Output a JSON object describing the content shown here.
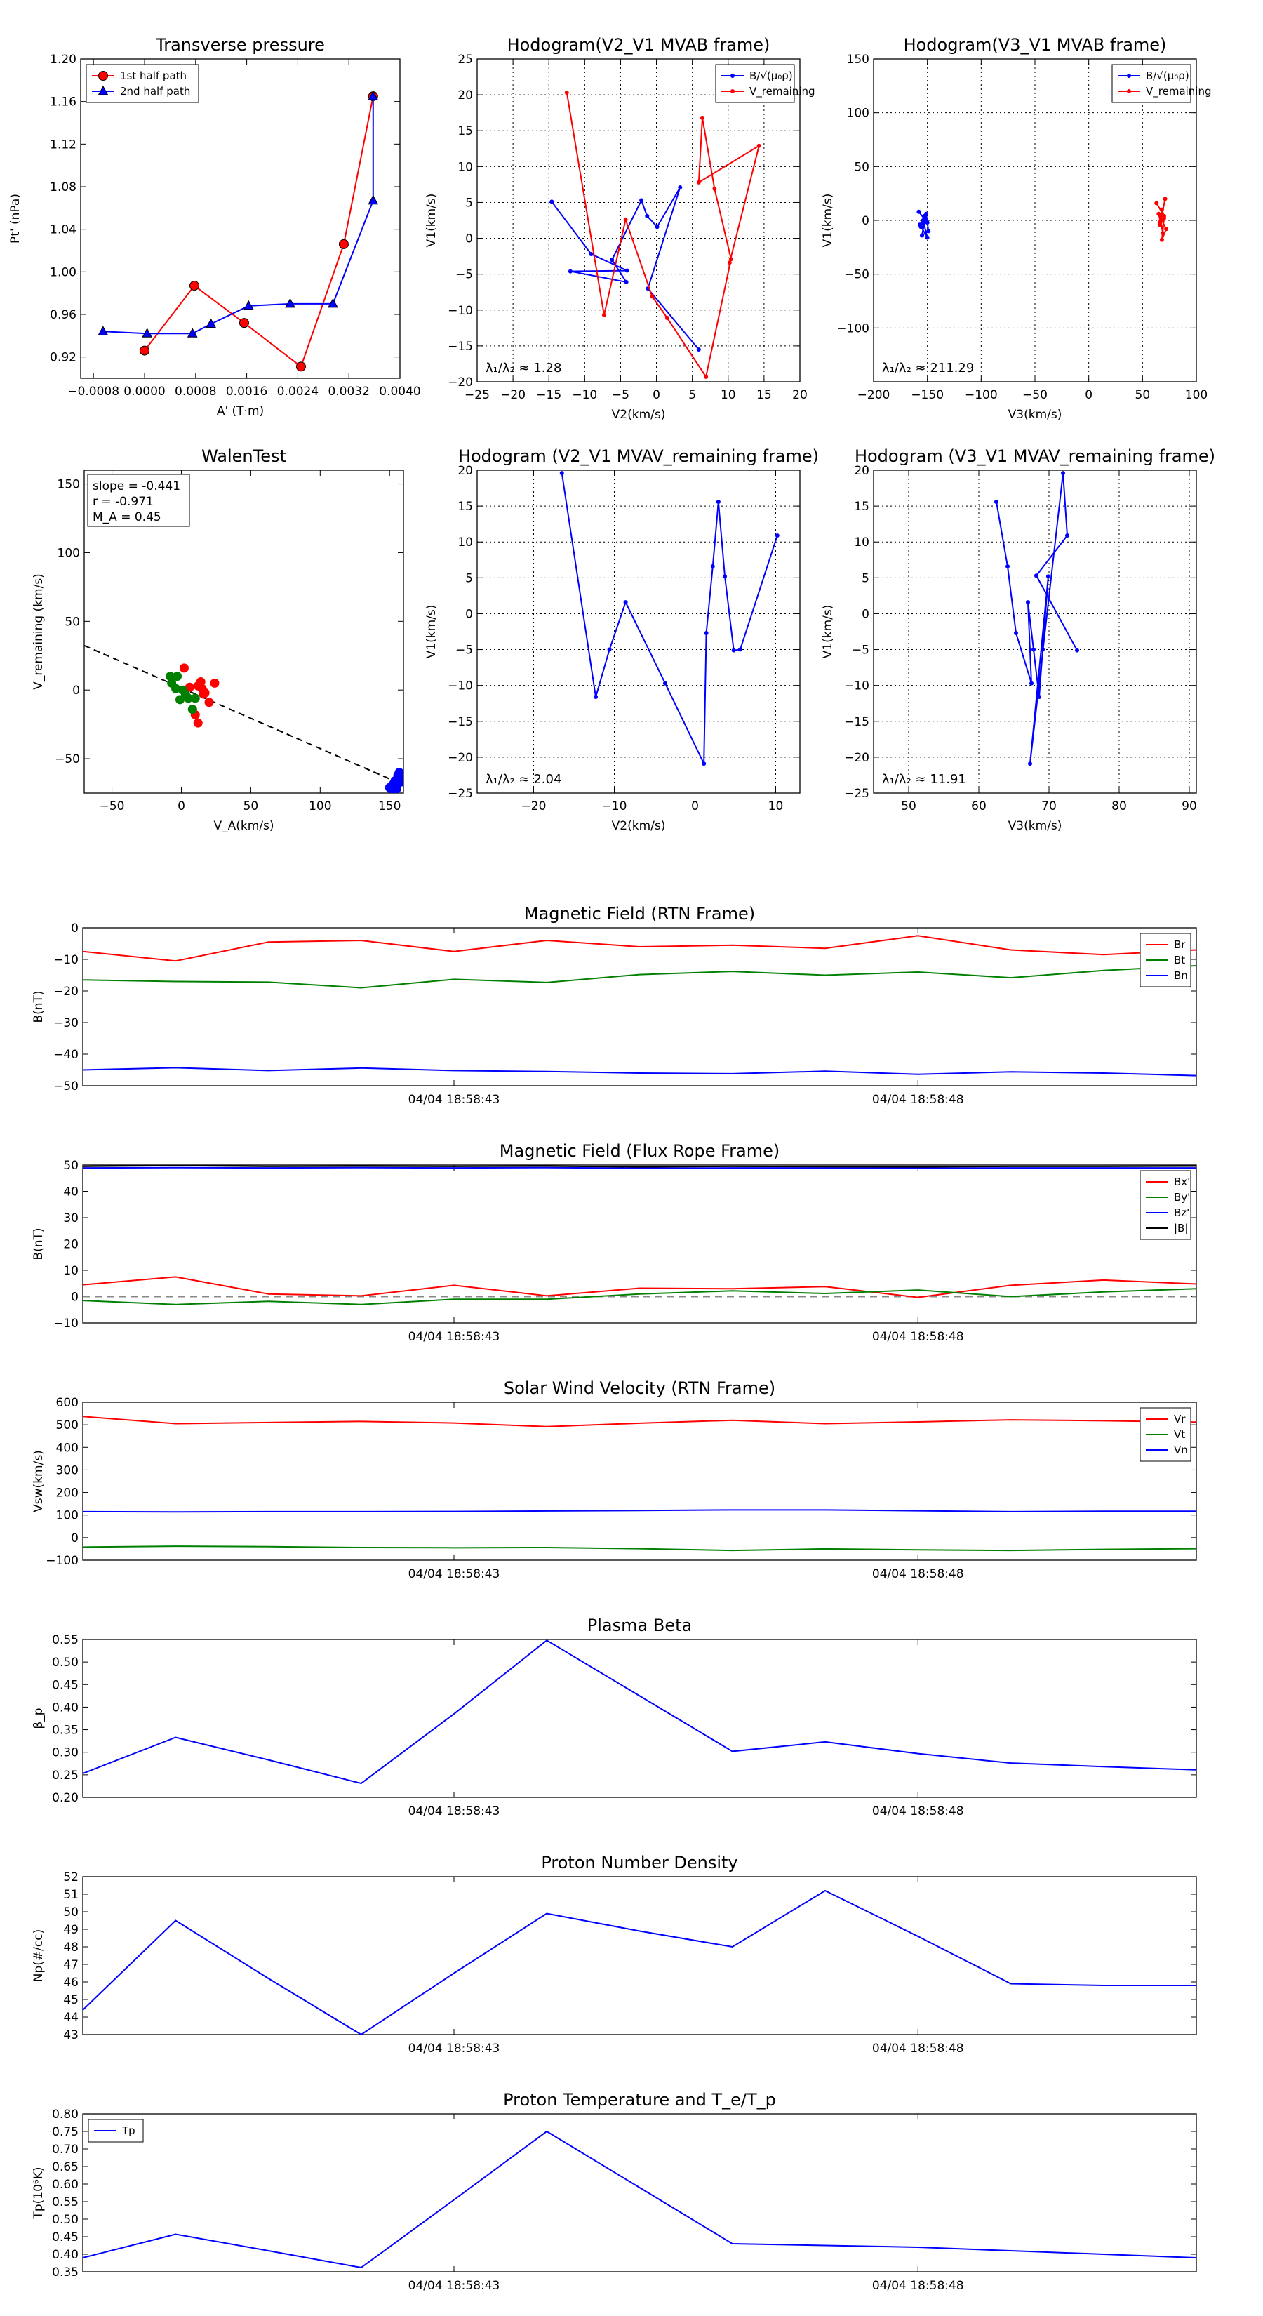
{
  "time_axis": {
    "tick_labels": [
      "04/04 18:58:43",
      "04/04 18:58:48"
    ],
    "tick_positions_s": [
      4,
      9
    ],
    "range_s": [
      0,
      12
    ]
  },
  "chart_data": [
    {
      "id": "pt",
      "type": "line",
      "title": "Transverse pressure",
      "xlabel": "A' (T·m)",
      "ylabel": "Pt' (nPa)",
      "xlim": [
        -0.001,
        0.004
      ],
      "ylim": [
        0.9,
        1.2
      ],
      "xticks": [
        -0.0008,
        0.0,
        0.0008,
        0.0016,
        0.0024,
        0.0032,
        0.004
      ],
      "xtick_labels": [
        "−0.0008",
        "0.0000",
        "0.0008",
        "0.0016",
        "0.0024",
        "0.0032",
        "0.0040"
      ],
      "yticks": [
        0.92,
        0.96,
        1.0,
        1.04,
        1.08,
        1.12,
        1.16,
        1.2
      ],
      "ytick_labels": [
        "0.92",
        "0.96",
        "1.00",
        "1.04",
        "1.08",
        "1.12",
        "1.16",
        "1.20"
      ],
      "legend_loc": "top-left",
      "series": [
        {
          "name": "1st half path",
          "color": "#ff0000",
          "marker": "circle",
          "x": [
            0.0,
            0.00078,
            0.00156,
            0.00245,
            0.00312,
            0.00358
          ],
          "y": [
            0.926,
            0.987,
            0.952,
            0.911,
            1.026,
            1.165
          ]
        },
        {
          "name": "2nd half path",
          "color": "#0000ff",
          "marker": "triangle",
          "x": [
            -0.00065,
            4e-05,
            0.00075,
            0.00104,
            0.00163,
            0.00228,
            0.00295,
            0.00358,
            0.00358
          ],
          "y": [
            0.944,
            0.942,
            0.942,
            0.951,
            0.968,
            0.97,
            0.97,
            1.067,
            1.165
          ]
        }
      ]
    },
    {
      "id": "h1",
      "type": "line",
      "title": "Hodogram(V2_V1 MVAB frame)",
      "xlabel": "V2(km/s)",
      "ylabel": "V1(km/s)",
      "xlim": [
        -25,
        20
      ],
      "ylim": [
        -20,
        25
      ],
      "xticks": [
        -25,
        -20,
        -15,
        -10,
        -5,
        0,
        5,
        10,
        15,
        20
      ],
      "yticks": [
        -20,
        -15,
        -10,
        -5,
        0,
        5,
        10,
        15,
        20,
        25
      ],
      "grid": true,
      "legend_loc": "top-right",
      "legend": [
        "B/√(μ₀ρ)",
        "V_remaining"
      ],
      "annotation": "λ₁/λ₂ ≈ 1.28",
      "series": [
        {
          "name": "B/√(μ₀ρ)",
          "color": "#0000ff",
          "x": [
            -14.6,
            -9.1,
            -4.1,
            -12.0,
            -4.2,
            -6.2,
            -2.1,
            -1.3,
            0.1,
            3.3,
            -1.2,
            5.9
          ],
          "y": [
            5.1,
            -2.2,
            -4.5,
            -4.6,
            -6.1,
            -3.0,
            5.3,
            3.1,
            1.6,
            7.1,
            -7.0,
            -15.5
          ]
        },
        {
          "name": "V_remaining",
          "color": "#ff0000",
          "x": [
            -12.5,
            -7.3,
            -4.3,
            -0.6,
            1.5,
            6.9,
            10.4,
            8.1,
            6.4,
            5.9,
            14.3,
            10.2
          ],
          "y": [
            20.3,
            -10.7,
            2.6,
            -8.1,
            -11.1,
            -19.3,
            -2.9,
            6.9,
            16.8,
            7.8,
            12.9,
            -3.4
          ]
        }
      ]
    },
    {
      "id": "h2",
      "type": "line",
      "title": "Hodogram(V3_V1 MVAB frame)",
      "xlabel": "V3(km/s)",
      "ylabel": "V1(km/s)",
      "xlim": [
        -200,
        100
      ],
      "ylim": [
        -150,
        150
      ],
      "xticks": [
        -200,
        -150,
        -100,
        -50,
        0,
        50,
        100
      ],
      "yticks": [
        -100,
        -50,
        0,
        50,
        100,
        150
      ],
      "grid": true,
      "legend_loc": "top-right",
      "legend": [
        "B/√(μ₀ρ)",
        "V_remaining"
      ],
      "annotation": "λ₁/λ₂ ≈ 211.29",
      "series": [
        {
          "name": "B/√(μ₀ρ)",
          "color": "#0000ff",
          "x": [
            -158,
            -150,
            -153,
            -156,
            -151,
            -149,
            -155,
            -152,
            -157,
            -150,
            -154,
            -152
          ],
          "y": [
            8,
            -2,
            4,
            -6,
            6,
            -10,
            -14,
            2,
            -4,
            -16,
            0,
            3
          ]
        },
        {
          "name": "V_remaining",
          "color": "#ff0000",
          "x": [
            63,
            70,
            68,
            66,
            71,
            67,
            69,
            65,
            72,
            68,
            70,
            66
          ],
          "y": [
            16,
            4,
            10,
            -4,
            20,
            0,
            -12,
            6,
            -8,
            -18,
            2,
            -2
          ]
        }
      ]
    },
    {
      "id": "walen",
      "type": "scatter",
      "title": "WalenTest",
      "xlabel": "V_A(km/s)",
      "ylabel": "V_remaining (km/s)",
      "xlim": [
        -70,
        160
      ],
      "ylim": [
        -75,
        160
      ],
      "xticks": [
        -50,
        0,
        50,
        100,
        150
      ],
      "yticks": [
        -50,
        0,
        50,
        100,
        150
      ],
      "annotation_lines": [
        "slope = -0.441",
        "r = -0.971",
        "M_A = 0.45"
      ],
      "fit_line": {
        "x": [
          -70,
          160
        ],
        "y": [
          32.4,
          -69.1
        ]
      },
      "series": [
        {
          "name": "red",
          "color": "#ff0000",
          "x": [
            2,
            12,
            14,
            17,
            10,
            12,
            20,
            24,
            16,
            15,
            6
          ],
          "y": [
            16,
            3,
            6,
            -2,
            -18,
            -24,
            -9,
            5,
            -3,
            1,
            2
          ]
        },
        {
          "name": "green",
          "color": "#008000",
          "x": [
            -8,
            -3,
            -4,
            -1,
            5,
            10,
            8,
            3,
            1,
            -7
          ],
          "y": [
            10,
            10,
            1,
            -7,
            -6,
            -6,
            -14,
            -3,
            0,
            5
          ]
        },
        {
          "name": "blue",
          "color": "#0000ff",
          "x": [
            150,
            152,
            153,
            154,
            155,
            156,
            157,
            158,
            155,
            151,
            157,
            156
          ],
          "y": [
            -71,
            -70,
            -68,
            -66,
            -69,
            -65,
            -63,
            -67,
            -72,
            -72,
            -60,
            -62
          ]
        }
      ]
    },
    {
      "id": "h3",
      "type": "line",
      "title": "Hodogram (V2_V1 MVAV_remaining frame)",
      "xlabel": "V2(km/s)",
      "ylabel": "V1(km/s)",
      "xlim": [
        -27,
        13
      ],
      "ylim": [
        -25,
        20
      ],
      "xticks": [
        -20,
        -10,
        0,
        10
      ],
      "yticks": [
        -25,
        -20,
        -15,
        -10,
        -5,
        0,
        5,
        10,
        15,
        20
      ],
      "grid": true,
      "annotation": "λ₁/λ₂ ≈ 2.04",
      "series": [
        {
          "name": "V_remaining",
          "color": "#0000ff",
          "x": [
            -16.5,
            -12.3,
            -10.6,
            -8.6,
            -3.7,
            1.1,
            1.4,
            2.2,
            2.9,
            3.7,
            4.8,
            5.6,
            10.2
          ],
          "y": [
            19.6,
            -11.6,
            -5.0,
            1.6,
            -9.7,
            -20.9,
            -2.7,
            6.6,
            15.6,
            5.2,
            -5.1,
            -5.0,
            10.9
          ]
        }
      ]
    },
    {
      "id": "h4",
      "type": "line",
      "title": "Hodogram (V3_V1 MVAV_remaining frame)",
      "xlabel": "V3(km/s)",
      "ylabel": "V1(km/s)",
      "xlim": [
        45,
        91
      ],
      "ylim": [
        -25,
        20
      ],
      "xticks": [
        50,
        60,
        70,
        80,
        90
      ],
      "yticks": [
        -25,
        -20,
        -15,
        -10,
        -5,
        0,
        5,
        10,
        15,
        20
      ],
      "grid": true,
      "annotation": "λ₁/λ₂ ≈ 11.91",
      "series": [
        {
          "name": "V_remaining",
          "color": "#0000ff",
          "x": [
            62.5,
            64.1,
            65.3,
            67.5,
            67.0,
            67.8,
            68.6,
            69.1,
            69.9,
            67.3,
            72.0,
            72.6,
            68.2,
            74.0
          ],
          "y": [
            15.6,
            6.6,
            -2.7,
            -9.7,
            1.6,
            -5.0,
            -11.6,
            -5.0,
            5.2,
            -20.9,
            19.6,
            10.9,
            5.3,
            -5.1
          ]
        }
      ]
    },
    {
      "id": "bfield",
      "type": "line",
      "title": "Magnetic Field (RTN Frame)",
      "ylabel": "B(nT)",
      "ylim": [
        -50,
        0
      ],
      "yticks": [
        -50,
        -40,
        -30,
        -20,
        -10,
        0
      ],
      "legend_loc": "top-right",
      "x": [
        0,
        1,
        2,
        3,
        4,
        5,
        6,
        7,
        8,
        9,
        10,
        11,
        12
      ],
      "series": [
        {
          "name": "Br",
          "color": "#ff0000",
          "values": [
            -7.5,
            -10.5,
            -4.5,
            -4.0,
            -7.5,
            -4.0,
            -6.0,
            -5.5,
            -6.5,
            -2.5,
            -7.0,
            -8.5,
            -7.0
          ]
        },
        {
          "name": "Bt",
          "color": "#008000",
          "values": [
            -16.5,
            -17.0,
            -17.2,
            -19.0,
            -16.3,
            -17.3,
            -14.8,
            -13.8,
            -15.0,
            -14.0,
            -15.8,
            -13.5,
            -12.0
          ]
        },
        {
          "name": "Bn",
          "color": "#0000ff",
          "values": [
            -45.0,
            -44.3,
            -45.2,
            -44.4,
            -45.2,
            -45.5,
            -46.0,
            -46.2,
            -45.4,
            -46.4,
            -45.6,
            -46.0,
            -46.8
          ]
        }
      ]
    },
    {
      "id": "bfr",
      "type": "line",
      "title": "Magnetic Field (Flux Rope Frame)",
      "ylabel": "B(nT)",
      "ylim": [
        -10,
        50
      ],
      "yticks": [
        -10,
        0,
        10,
        20,
        30,
        40,
        50
      ],
      "legend_loc": "top-right",
      "zero_line": true,
      "x": [
        0,
        1,
        2,
        3,
        4,
        5,
        6,
        7,
        8,
        9,
        10,
        11,
        12
      ],
      "series": [
        {
          "name": "Bx'",
          "color": "#ff0000",
          "values": [
            4.5,
            7.5,
            1.0,
            0.3,
            4.3,
            0.3,
            3.2,
            3.0,
            3.8,
            -0.3,
            4.3,
            6.3,
            4.8
          ]
        },
        {
          "name": "By'",
          "color": "#008000",
          "values": [
            -1.5,
            -3.0,
            -1.8,
            -3.0,
            -1.0,
            -1.0,
            1.0,
            2.2,
            1.2,
            2.5,
            0.0,
            1.8,
            3.0
          ]
        },
        {
          "name": "Bz'",
          "color": "#0000ff",
          "values": [
            48.9,
            49.0,
            48.9,
            49.0,
            48.9,
            49.0,
            48.8,
            48.9,
            48.9,
            48.8,
            48.9,
            48.9,
            48.9
          ]
        },
        {
          "name": "|B|",
          "color": "#000000",
          "values": [
            49.5,
            49.8,
            49.5,
            49.6,
            49.5,
            49.6,
            49.3,
            49.5,
            49.4,
            49.3,
            49.5,
            49.5,
            49.6
          ]
        }
      ]
    },
    {
      "id": "vsw",
      "type": "line",
      "title": "Solar Wind Velocity (RTN Frame)",
      "ylabel": "Vsw(km/s)",
      "ylim": [
        -100,
        600
      ],
      "yticks": [
        -100,
        0,
        100,
        200,
        300,
        400,
        500,
        600
      ],
      "legend_loc": "top-right",
      "x": [
        0,
        1,
        2,
        3,
        4,
        5,
        6,
        7,
        8,
        9,
        10,
        11,
        12
      ],
      "series": [
        {
          "name": "Vr",
          "color": "#ff0000",
          "values": [
            537,
            505,
            510,
            515,
            508,
            492,
            507,
            520,
            505,
            513,
            522,
            518,
            512
          ]
        },
        {
          "name": "Vt",
          "color": "#008000",
          "values": [
            -42,
            -38,
            -40,
            -44,
            -45,
            -44,
            -49,
            -57,
            -50,
            -54,
            -57,
            -52,
            -49
          ]
        },
        {
          "name": "Vn",
          "color": "#0000ff",
          "values": [
            115,
            114,
            115,
            115,
            116,
            118,
            120,
            123,
            123,
            119,
            115,
            117,
            117
          ]
        }
      ]
    },
    {
      "id": "beta",
      "type": "line",
      "title": "Plasma Beta",
      "ylabel": "β_p",
      "ylim": [
        0.2,
        0.55
      ],
      "yticks": [
        0.2,
        0.25,
        0.3,
        0.35,
        0.4,
        0.45,
        0.5,
        0.55
      ],
      "ytick_labels": [
        "0.20",
        "0.25",
        "0.30",
        "0.35",
        "0.40",
        "0.45",
        "0.50",
        "0.55"
      ],
      "x": [
        0,
        1,
        2,
        3,
        4,
        5,
        6,
        7,
        8,
        9,
        10,
        11,
        12
      ],
      "series": [
        {
          "name": "beta",
          "color": "#0000ff",
          "values": [
            0.253,
            0.333,
            0.283,
            0.231,
            0.385,
            0.548,
            0.425,
            0.302,
            0.323,
            0.297,
            0.276,
            0.268,
            0.261
          ]
        }
      ]
    },
    {
      "id": "np",
      "type": "line",
      "title": "Proton Number Density",
      "ylabel": "Np(#/cc)",
      "ylim": [
        43,
        52
      ],
      "yticks": [
        43,
        44,
        45,
        46,
        47,
        48,
        49,
        50,
        51,
        52
      ],
      "x": [
        0,
        1,
        2,
        3,
        4,
        5,
        6,
        7,
        8,
        9,
        10,
        11,
        12
      ],
      "series": [
        {
          "name": "Np",
          "color": "#0000ff",
          "values": [
            44.4,
            49.5,
            46.2,
            43.0,
            46.5,
            49.9,
            48.9,
            48.0,
            51.2,
            48.6,
            45.9,
            45.8,
            45.8
          ]
        }
      ]
    },
    {
      "id": "tp",
      "type": "line",
      "title": "Proton Temperature and T_e/T_p",
      "ylabel": "Tp(10⁶K)",
      "ylim": [
        0.35,
        0.8
      ],
      "yticks": [
        0.35,
        0.4,
        0.45,
        0.5,
        0.55,
        0.6,
        0.65,
        0.7,
        0.75,
        0.8
      ],
      "ytick_labels": [
        "0.35",
        "0.40",
        "0.45",
        "0.50",
        "0.55",
        "0.60",
        "0.65",
        "0.70",
        "0.75",
        "0.80"
      ],
      "legend_loc": "top-left",
      "x": [
        0,
        1,
        2,
        3,
        4,
        5,
        6,
        7,
        8,
        9,
        10,
        11,
        12
      ],
      "series": [
        {
          "name": "Tp",
          "color": "#0000ff",
          "values": [
            0.39,
            0.457,
            0.41,
            0.362,
            0.555,
            0.75,
            0.59,
            0.43,
            0.425,
            0.42,
            0.41,
            0.4,
            0.39
          ]
        }
      ]
    }
  ]
}
